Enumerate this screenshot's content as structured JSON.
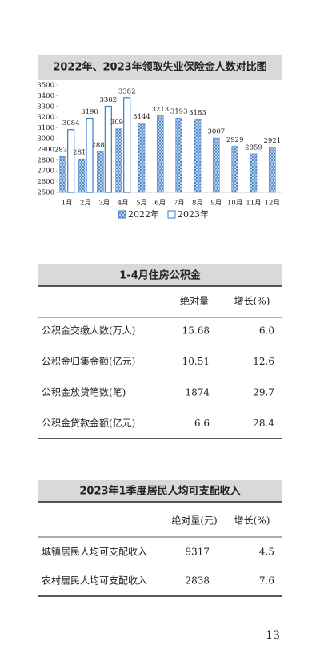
{
  "chart_data": {
    "type": "bar",
    "title": "2022年、2023年领取失业保险金人数对比图",
    "categories": [
      "1月",
      "2月",
      "3月",
      "4月",
      "5月",
      "6月",
      "7月",
      "8月",
      "9月",
      "10月",
      "11月",
      "12月"
    ],
    "series": [
      {
        "name": "2022年",
        "color": "#3a7cc2",
        "values": [
          2834,
          2812,
          2880,
          3092,
          3144,
          3213,
          3193,
          3183,
          3007,
          2929,
          2859,
          2921
        ]
      },
      {
        "name": "2023年",
        "color": "#3a7cc2",
        "values": [
          3084,
          3190,
          3302,
          3382,
          null,
          null,
          null,
          null,
          null,
          null,
          null,
          null
        ]
      }
    ],
    "ylim": [
      2500,
      3500
    ],
    "yticks": [
      2500,
      2600,
      2700,
      2800,
      2900,
      3000,
      3100,
      3200,
      3300,
      3400,
      3500
    ]
  },
  "table1": {
    "title": "1-4月住房公积金",
    "header": [
      "绝对量",
      "增长(%)"
    ],
    "rows": [
      [
        "公积金交缴人数(万人)",
        "15.68",
        "6.0"
      ],
      [
        "公积金归集金额(亿元)",
        "10.51",
        "12.6"
      ],
      [
        "公积金放贷笔数(笔)",
        "1874",
        "29.7"
      ],
      [
        "公积金贷款金额(亿元)",
        "6.6",
        "28.4"
      ]
    ]
  },
  "table2": {
    "title": "2023年1季度居民人均可支配收入",
    "header": [
      "绝对量(元)",
      "增长(%)"
    ],
    "rows": [
      [
        "城镇居民人均可支配收入",
        "9317",
        "4.5"
      ],
      [
        "农村居民人均可支配收入",
        "2838",
        "7.6"
      ]
    ]
  },
  "page_number": "13"
}
